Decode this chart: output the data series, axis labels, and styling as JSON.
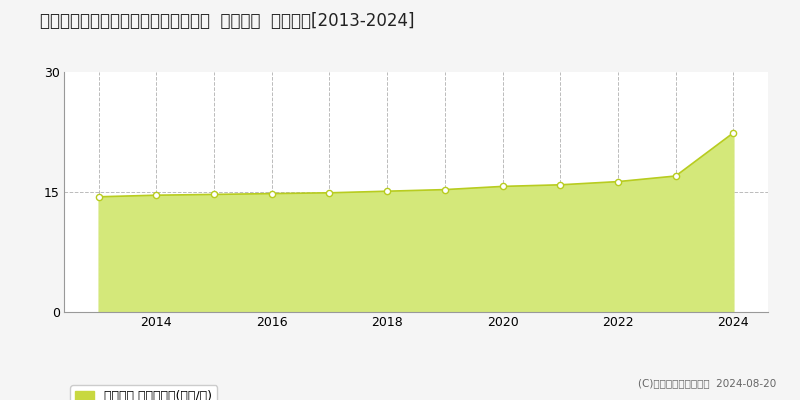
{
  "title": "宮城県名取市飯野坂６丁目３１５番外  地価公示  地価推移[2013-2024]",
  "years": [
    2013,
    2014,
    2015,
    2016,
    2017,
    2018,
    2019,
    2020,
    2021,
    2022,
    2023,
    2024
  ],
  "values": [
    14.4,
    14.6,
    14.7,
    14.8,
    14.9,
    15.1,
    15.3,
    15.7,
    15.9,
    16.3,
    17.0,
    22.4
  ],
  "ylim": [
    0,
    30
  ],
  "yticks": [
    0,
    15,
    30
  ],
  "line_color": "#b8cc20",
  "fill_color": "#d4e87a",
  "marker_facecolor": "#ffffff",
  "marker_edgecolor": "#b8cc20",
  "grid_color": "#bbbbbb",
  "background_color": "#f5f5f5",
  "plot_bg_color": "#ffffff",
  "legend_label": "地価公示 平均坪単価(万円/坪)",
  "legend_marker_color": "#c8d840",
  "copyright_text": "(C)土地価格ドットコム  2024-08-20",
  "title_fontsize": 12,
  "axis_fontsize": 9,
  "legend_fontsize": 9
}
